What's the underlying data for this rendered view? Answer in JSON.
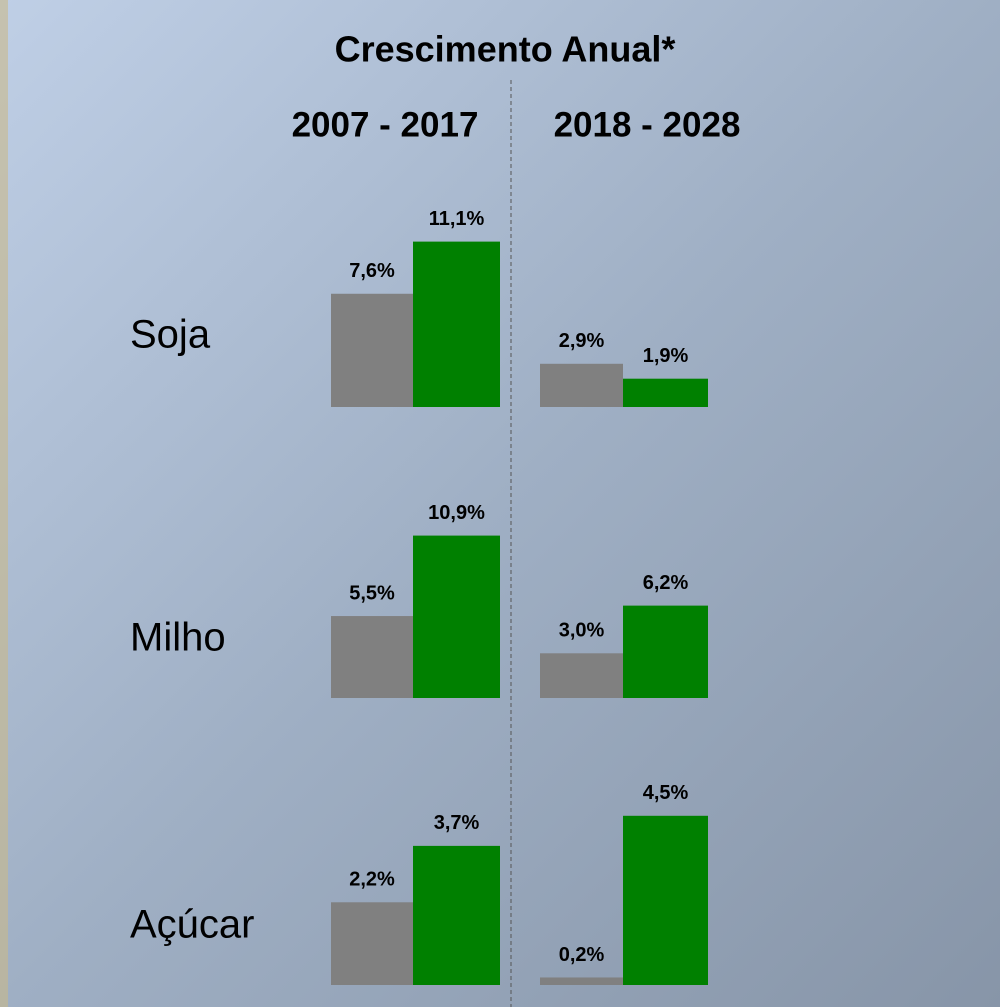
{
  "chart_data": {
    "type": "bar",
    "title": "Crescimento Anual*",
    "categories": [
      "Soja",
      "Milho",
      "Açúcar"
    ],
    "panels": [
      {
        "period": "2007 - 2017",
        "series": [
          {
            "color": "#808080",
            "values": [
              7.6,
              5.5,
              2.2
            ],
            "value_labels": [
              "7,6%",
              "5,5%",
              "2,2%"
            ]
          },
          {
            "color": "#008000",
            "values": [
              11.1,
              10.9,
              3.7
            ],
            "value_labels": [
              "11,1%",
              "10,9%",
              "3,7%"
            ]
          }
        ]
      },
      {
        "period": "2018 - 2028",
        "series": [
          {
            "color": "#808080",
            "values": [
              2.9,
              3.0,
              0.2
            ],
            "value_labels": [
              "2,9%",
              "3,0%",
              "0,2%"
            ]
          },
          {
            "color": "#008000",
            "values": [
              1.9,
              6.2,
              4.5
            ],
            "value_labels": [
              "1,9%",
              "6,2%",
              "4,5%"
            ]
          }
        ]
      }
    ]
  }
}
